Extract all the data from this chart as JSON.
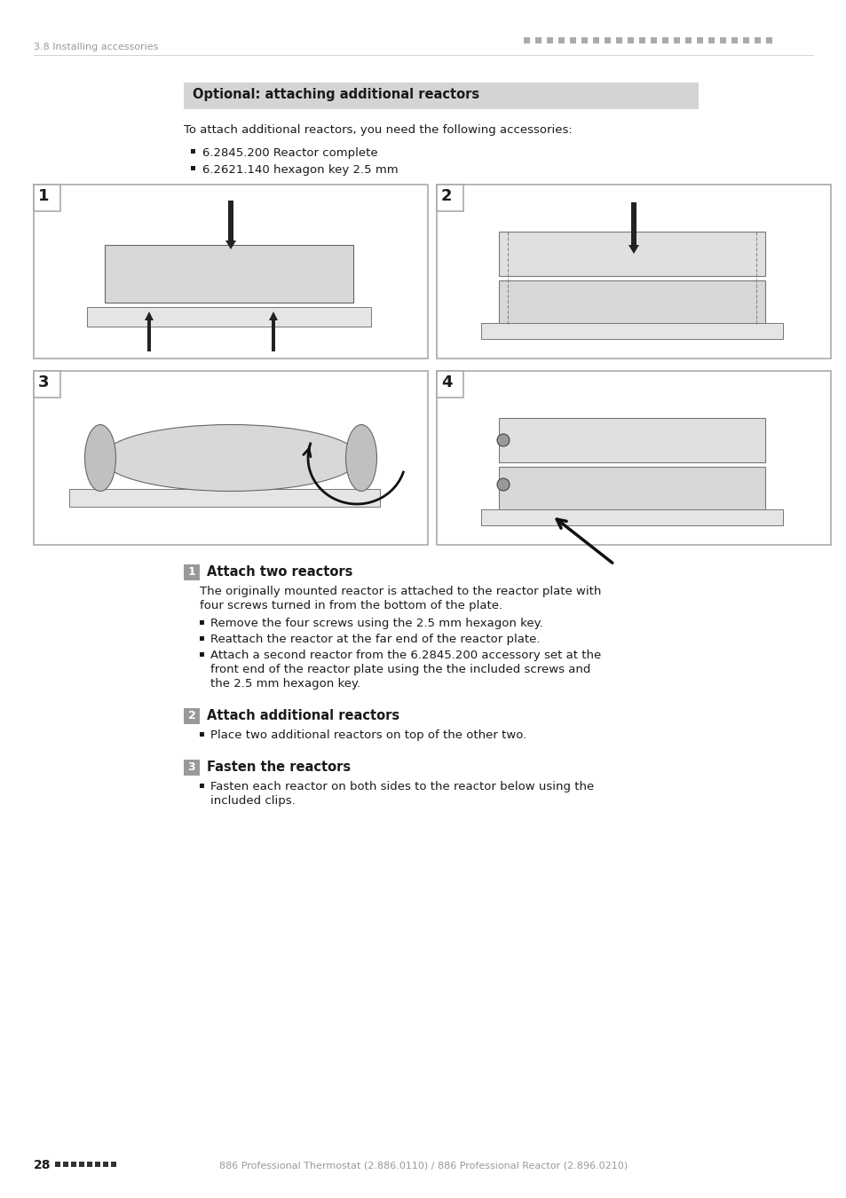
{
  "page_header_left": "3.8 Installing accessories",
  "section_title": "Optional: attaching additional reactors",
  "section_title_bg": "#d4d4d4",
  "intro_text": "To attach additional reactors, you need the following accessories:",
  "bullet_items_intro": [
    "6.2845.200 Reactor complete",
    "6.2621.140 hexagon key 2.5 mm"
  ],
  "step_sections": [
    {
      "number": "1",
      "title": "Attach two reactors",
      "body": "The originally mounted reactor is attached to the reactor plate with\nfour screws turned in from the bottom of the plate.",
      "bullets": [
        "Remove the four screws using the 2.5 mm hexagon key.",
        "Reattach the reactor at the far end of the reactor plate.",
        "Attach a second reactor from the 6.2845.200 accessory set at the\nfront end of the reactor plate using the the included screws and\nthe 2.5 mm hexagon key."
      ]
    },
    {
      "number": "2",
      "title": "Attach additional reactors",
      "body": "",
      "bullets": [
        "Place two additional reactors on top of the other two."
      ]
    },
    {
      "number": "3",
      "title": "Fasten the reactors",
      "body": "",
      "bullets": [
        "Fasten each reactor on both sides to the reactor below using the\nincluded clips."
      ]
    }
  ],
  "page_number": "28",
  "footer_text": "886 Professional Thermostat (2.886.0110) / 886 Professional Reactor (2.896.0210)",
  "bg_color": "#ffffff",
  "text_color": "#1a1a1a",
  "header_text_color": "#999999",
  "step_number_bg": "#999999",
  "step_number_text_color": "#ffffff",
  "image_border_color": "#aaaaaa",
  "image_labels": [
    "1",
    "2",
    "3",
    "4"
  ],
  "dot_color": "#aaaaaa",
  "footer_dot_color": "#333333",
  "bullet_char": "■"
}
